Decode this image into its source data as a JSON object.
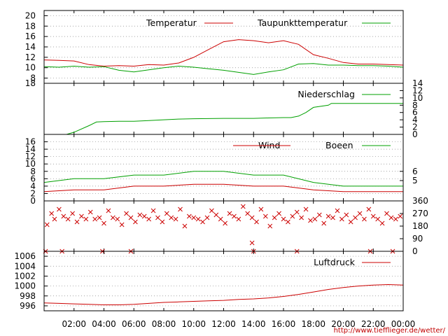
{
  "footer": {
    "url": "http://www.tiefflieger.de/wetter/"
  },
  "colors": {
    "red": "#cc0000",
    "green": "#00a000",
    "grid": "#888888"
  },
  "chart_data": [
    {
      "name": "temperature",
      "type": "line",
      "x_ticks": [
        "02:00",
        "04:00",
        "06:00",
        "08:00",
        "10:00",
        "12:00",
        "14:00",
        "16:00",
        "18:00",
        "20:00",
        "22:00",
        "00:00"
      ],
      "y_left_ticks": [
        "8",
        "10",
        "12",
        "14",
        "16",
        "18",
        "20"
      ],
      "ylim": [
        7,
        21
      ],
      "series": [
        {
          "name": "Temperatur",
          "color": "#cc0000",
          "x": [
            0,
            1,
            2,
            3,
            4,
            5,
            6,
            7,
            8,
            9,
            10,
            11,
            12,
            13,
            14,
            15,
            16,
            17,
            18,
            19,
            20,
            21,
            22,
            23,
            24
          ],
          "values": [
            11.5,
            11.4,
            11.3,
            10.6,
            10.3,
            10.4,
            10.3,
            10.6,
            10.5,
            10.9,
            12.0,
            13.5,
            15.0,
            15.4,
            15.2,
            14.8,
            15.2,
            14.5,
            12.5,
            11.8,
            11.0,
            10.7,
            10.7,
            10.6,
            10.5
          ]
        },
        {
          "name": "Taupunkttemperatur",
          "color": "#00a000",
          "x": [
            0,
            1,
            2,
            3,
            4,
            5,
            6,
            7,
            8,
            9,
            10,
            11,
            12,
            13,
            14,
            15,
            16,
            17,
            18,
            19,
            20,
            21,
            22,
            23,
            24
          ],
          "values": [
            10.2,
            10.1,
            10.3,
            10.1,
            10.2,
            9.5,
            9.2,
            9.6,
            10.0,
            10.3,
            10.1,
            9.8,
            9.5,
            9.1,
            8.7,
            9.2,
            9.6,
            10.7,
            10.8,
            10.5,
            10.5,
            10.4,
            10.4,
            10.3,
            10.1
          ]
        }
      ]
    },
    {
      "name": "precipitation",
      "type": "line",
      "x_ticks": [],
      "y_left_ticks": [
        "18"
      ],
      "y_right_ticks": [
        "0",
        "2",
        "4",
        "6",
        "8",
        "10",
        "12",
        "14"
      ],
      "ylim": [
        0,
        14
      ],
      "series": [
        {
          "name": "Niederschlag",
          "color": "#00a000",
          "x": [
            0,
            1.5,
            2,
            3,
            3.5,
            4,
            5,
            6,
            7,
            8,
            9,
            10,
            12,
            14,
            15,
            16,
            16.5,
            17,
            17.5,
            18,
            19,
            19.2,
            20,
            22,
            24
          ],
          "values": [
            0,
            0,
            0.6,
            2.4,
            3.4,
            3.5,
            3.6,
            3.6,
            3.8,
            4.0,
            4.2,
            4.3,
            4.4,
            4.4,
            4.5,
            4.6,
            4.6,
            5.0,
            6.0,
            7.4,
            8.0,
            8.5,
            8.5,
            8.5,
            8.5
          ]
        }
      ]
    },
    {
      "name": "wind",
      "type": "line",
      "x_ticks": [],
      "y_left_ticks": [
        "0",
        "2",
        "4",
        "6",
        "8",
        "10",
        "12",
        "14",
        "16"
      ],
      "y_right_ticks": [
        "5",
        "6"
      ],
      "ylim": [
        0,
        18
      ],
      "series": [
        {
          "name": "Wind",
          "color": "#cc0000",
          "x": [
            0,
            2,
            4,
            6,
            8,
            10,
            12,
            14,
            16,
            18,
            20,
            22,
            24
          ],
          "values": [
            2.5,
            3,
            3,
            4,
            4,
            4.5,
            4.5,
            4,
            4,
            3,
            2.5,
            2.5,
            2.5
          ]
        },
        {
          "name": "Boeen",
          "color": "#00a000",
          "x": [
            0,
            2,
            4,
            6,
            8,
            10,
            12,
            14,
            16,
            18,
            20,
            22,
            24
          ],
          "values": [
            5,
            6,
            6,
            7,
            7,
            8,
            8,
            7,
            7,
            5,
            4,
            4,
            4
          ]
        }
      ]
    },
    {
      "name": "wind_direction",
      "type": "scatter",
      "x_ticks": [],
      "y_right_ticks": [
        "0",
        "90",
        "180",
        "270",
        "360"
      ],
      "ylim": [
        0,
        360
      ],
      "series": [
        {
          "name": "",
          "color": "#cc0000",
          "marker": "x",
          "x": [
            0.2,
            0.5,
            0.7,
            1.0,
            1.3,
            1.6,
            1.9,
            2.2,
            2.5,
            2.8,
            3.1,
            3.4,
            3.7,
            4.0,
            4.3,
            4.6,
            4.9,
            5.2,
            5.5,
            5.8,
            6.1,
            6.4,
            6.7,
            7.0,
            7.3,
            7.6,
            7.9,
            8.2,
            8.5,
            8.8,
            9.1,
            9.4,
            9.7,
            10.0,
            10.3,
            10.6,
            10.9,
            11.2,
            11.5,
            11.8,
            12.1,
            12.4,
            12.7,
            13.0,
            13.3,
            13.6,
            13.9,
            14.2,
            14.5,
            14.8,
            15.1,
            15.4,
            15.7,
            16.0,
            16.3,
            16.6,
            16.9,
            17.2,
            17.5,
            17.8,
            18.1,
            18.4,
            18.7,
            19.0,
            19.3,
            19.6,
            19.9,
            20.2,
            20.5,
            20.8,
            21.1,
            21.4,
            21.7,
            22.0,
            22.3,
            22.6,
            22.9,
            23.2,
            23.5,
            23.8,
            0.1,
            1.2,
            3.9,
            5.8,
            14.0,
            16.9,
            21.8,
            23.3,
            13.9
          ],
          "values": [
            190,
            270,
            230,
            300,
            250,
            230,
            270,
            210,
            250,
            230,
            280,
            230,
            240,
            200,
            290,
            240,
            230,
            190,
            270,
            240,
            210,
            260,
            250,
            230,
            290,
            240,
            210,
            270,
            240,
            230,
            300,
            180,
            250,
            240,
            230,
            210,
            240,
            290,
            260,
            230,
            200,
            270,
            250,
            230,
            320,
            270,
            240,
            210,
            300,
            250,
            180,
            240,
            270,
            230,
            210,
            250,
            280,
            240,
            300,
            220,
            230,
            260,
            200,
            250,
            240,
            290,
            230,
            260,
            210,
            240,
            270,
            230,
            300,
            250,
            230,
            200,
            270,
            240,
            230,
            250,
            0,
            0,
            0,
            0,
            0,
            0,
            0,
            0,
            60
          ]
        }
      ]
    },
    {
      "name": "pressure",
      "type": "line",
      "x_ticks": [
        "02:00",
        "04:00",
        "06:00",
        "08:00",
        "10:00",
        "12:00",
        "14:00",
        "16:00",
        "18:00",
        "20:00",
        "22:00",
        "00:00"
      ],
      "y_left_ticks": [
        "996",
        "998",
        "1000",
        "1002",
        "1004",
        "1006"
      ],
      "ylim": [
        995,
        1007
      ],
      "series": [
        {
          "name": "Luftdruck",
          "color": "#cc0000",
          "x": [
            0,
            1,
            2,
            3,
            4,
            5,
            6,
            7,
            8,
            9,
            10,
            11,
            12,
            13,
            14,
            15,
            16,
            17,
            18,
            19,
            20,
            21,
            22,
            23,
            24
          ],
          "values": [
            996.6,
            996.5,
            996.4,
            996.3,
            996.2,
            996.2,
            996.3,
            996.5,
            996.7,
            996.8,
            996.9,
            997.0,
            997.1,
            997.3,
            997.4,
            997.6,
            997.9,
            998.3,
            998.8,
            999.3,
            999.7,
            1000.0,
            1000.2,
            1000.3,
            1000.2
          ]
        }
      ]
    }
  ]
}
